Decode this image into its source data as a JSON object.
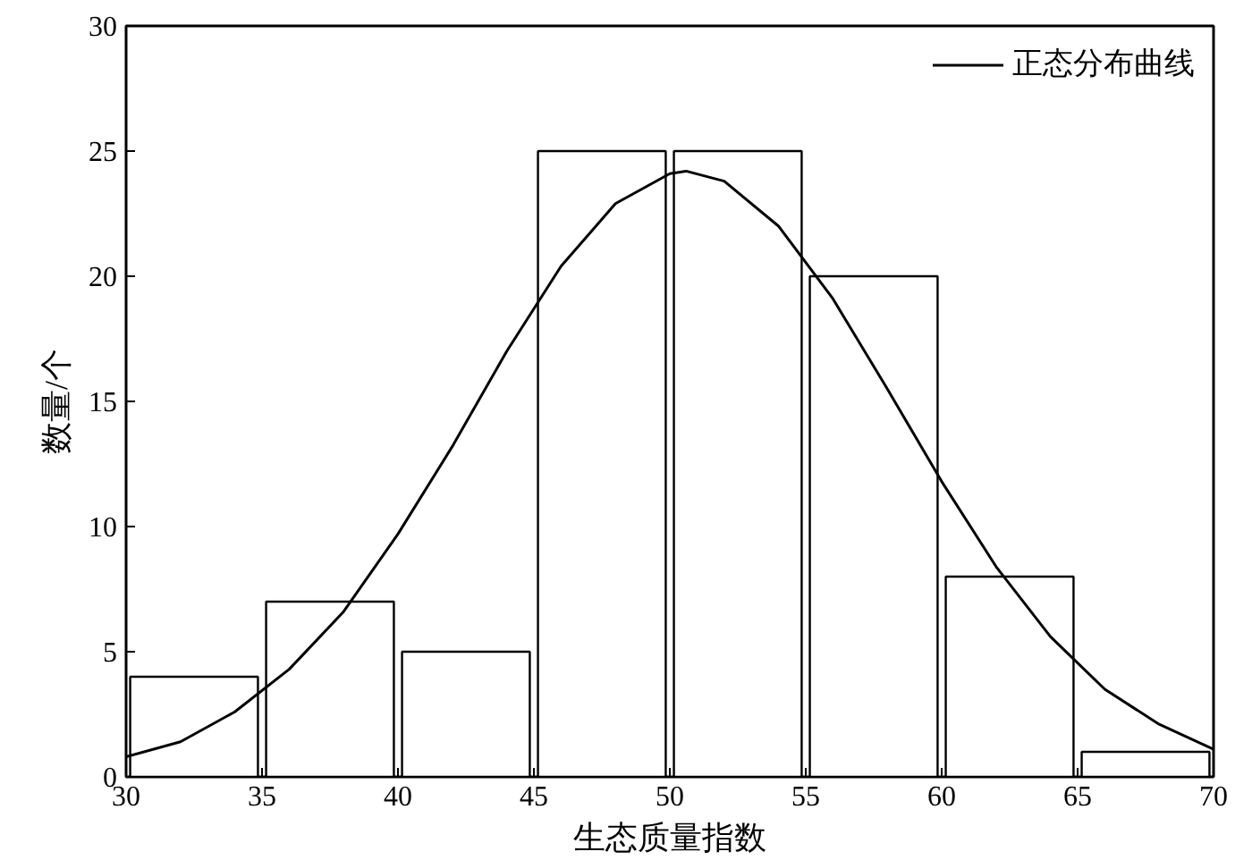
{
  "chart_data": {
    "type": "histogram",
    "xlabel": "生态质量指数",
    "ylabel": "数量/个",
    "bins": [
      30,
      35,
      40,
      45,
      50,
      55,
      60,
      65,
      70
    ],
    "values": [
      4,
      7,
      5,
      25,
      25,
      20,
      8,
      1
    ],
    "color": "#ffffff",
    "series": [
      {
        "name": "正态分布曲线",
        "type": "line",
        "color": "#000000",
        "x": [
          30,
          32,
          34,
          36,
          38,
          40,
          42,
          44,
          46,
          48,
          50,
          50.6,
          52,
          54,
          56,
          58,
          60,
          62,
          64,
          66,
          68,
          70
        ],
        "values": [
          0.8,
          1.4,
          2.6,
          4.3,
          6.6,
          9.7,
          13.2,
          17.0,
          20.4,
          22.9,
          24.1,
          24.2,
          23.8,
          22.0,
          19.1,
          15.5,
          11.8,
          8.4,
          5.6,
          3.5,
          2.1,
          1.1
        ]
      }
    ],
    "xlim": [
      30,
      70
    ],
    "ylim": [
      0,
      30
    ],
    "xticks": [
      30,
      35,
      40,
      45,
      50,
      55,
      60,
      65,
      70
    ],
    "yticks": [
      0,
      5,
      10,
      15,
      20,
      25,
      30
    ],
    "grid": false,
    "legend": "top right"
  }
}
